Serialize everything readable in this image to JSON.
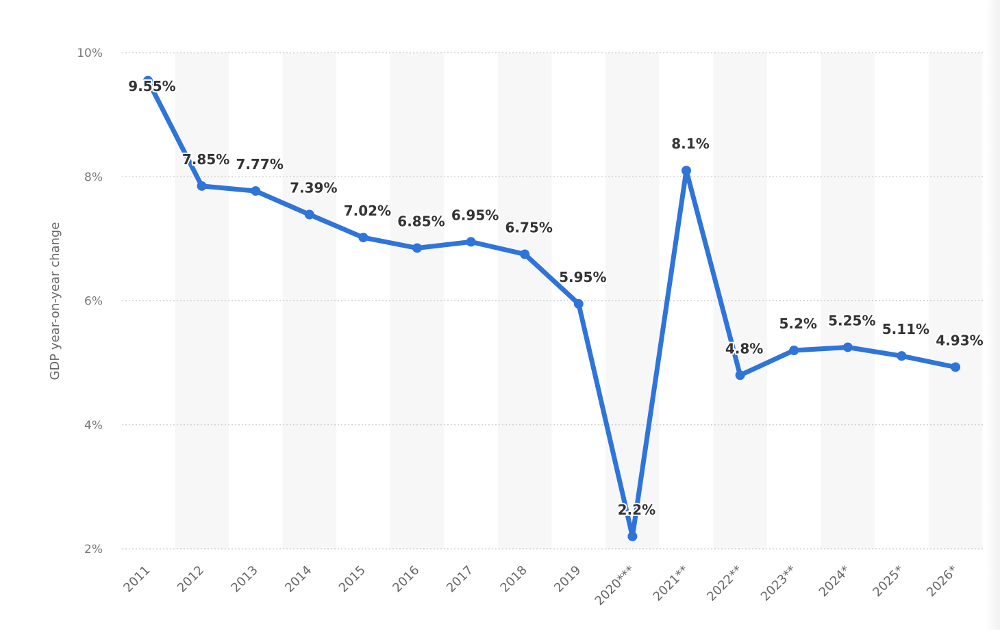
{
  "chart_data": {
    "type": "line",
    "title": "",
    "xlabel": "",
    "ylabel": "GDP year-on-year change",
    "ylim": [
      2,
      10
    ],
    "yticks": [
      2,
      4,
      6,
      8,
      10
    ],
    "ytick_labels": [
      "2%",
      "4%",
      "6%",
      "8%",
      "10%"
    ],
    "grid": true,
    "alternating_column_shading": true,
    "categories": [
      "2011",
      "2012",
      "2013",
      "2014",
      "2015",
      "2016",
      "2017",
      "2018",
      "2019",
      "2020***",
      "2021**",
      "2022**",
      "2023**",
      "2024*",
      "2025*",
      "2026*"
    ],
    "series": [
      {
        "values": [
          9.55,
          7.85,
          7.77,
          7.39,
          7.02,
          6.85,
          6.95,
          6.75,
          5.95,
          2.2,
          8.1,
          4.8,
          5.2,
          5.25,
          5.11,
          4.93
        ],
        "labels": [
          "9.55%",
          "7.85%",
          "7.77%",
          "7.39%",
          "7.02%",
          "6.85%",
          "6.95%",
          "6.75%",
          "5.95%",
          "2.2%",
          "8.1%",
          "4.8%",
          "5.2%",
          "5.25%",
          "5.11%",
          "4.93%"
        ],
        "color": "#2f74d8"
      }
    ]
  }
}
